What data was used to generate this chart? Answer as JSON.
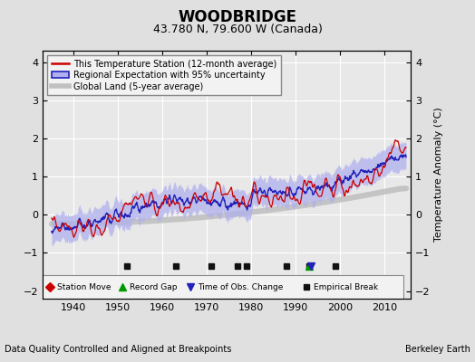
{
  "title": "WOODBRIDGE",
  "subtitle": "43.780 N, 79.600 W (Canada)",
  "ylabel": "Temperature Anomaly (°C)",
  "xlabel_footnote": "Data Quality Controlled and Aligned at Breakpoints",
  "credit": "Berkeley Earth",
  "ylim": [
    -2.2,
    4.3
  ],
  "xlim": [
    1933,
    2016
  ],
  "yticks": [
    -2,
    -1,
    0,
    1,
    2,
    3,
    4
  ],
  "xticks": [
    1940,
    1950,
    1960,
    1970,
    1980,
    1990,
    2000,
    2010
  ],
  "bg_color": "#e0e0e0",
  "plot_bg_color": "#e8e8e8",
  "grid_color": "#ffffff",
  "station_color": "#cc0000",
  "regional_line_color": "#2222bb",
  "regional_fill_color": "#b0b0ee",
  "global_color": "#c0c0c0",
  "legend_items": [
    "This Temperature Station (12-month average)",
    "Regional Expectation with 95% uncertainty",
    "Global Land (5-year average)"
  ],
  "marker_y": -1.35,
  "marker_events": {
    "station_move": {
      "years": [],
      "color": "#cc0000",
      "marker": "D"
    },
    "record_gap": {
      "years": [
        1993
      ],
      "color": "#00aa00",
      "marker": "^"
    },
    "time_obs_change": {
      "years": [
        1993
      ],
      "color": "#2222bb",
      "marker": "v"
    },
    "empirical_break": {
      "years": [
        1952,
        1963,
        1971,
        1977,
        1979,
        1988,
        1993,
        1999
      ],
      "color": "#222222",
      "marker": "s"
    }
  }
}
